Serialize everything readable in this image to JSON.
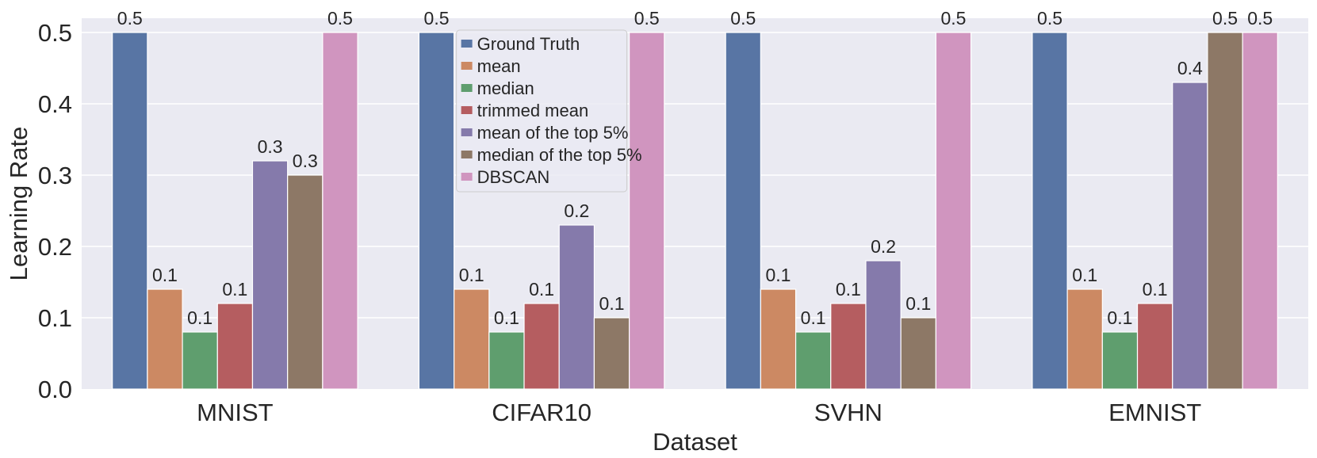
{
  "chart_data": {
    "type": "bar",
    "xlabel": "Dataset",
    "ylabel": "Learning Rate",
    "ylim": [
      0,
      0.52
    ],
    "yticks": [
      "0.0",
      "0.1",
      "0.2",
      "0.3",
      "0.4",
      "0.5"
    ],
    "grid": true,
    "legend_placement": "lower-left",
    "categories": [
      "MNIST",
      "CIFAR10",
      "SVHN",
      "EMNIST"
    ],
    "series": [
      {
        "name": "Ground Truth",
        "color": "#5875a4",
        "values": [
          0.5,
          0.5,
          0.5,
          0.5
        ],
        "labels": [
          "0.5",
          "0.5",
          "0.5",
          "0.5"
        ]
      },
      {
        "name": "mean",
        "color": "#cc8963",
        "values": [
          0.14,
          0.14,
          0.14,
          0.14
        ],
        "labels": [
          "0.1",
          "0.1",
          "0.1",
          "0.1"
        ]
      },
      {
        "name": "median",
        "color": "#5f9e6e",
        "values": [
          0.08,
          0.08,
          0.08,
          0.08
        ],
        "labels": [
          "0.1",
          "0.1",
          "0.1",
          "0.1"
        ]
      },
      {
        "name": "trimmed mean",
        "color": "#b55d60",
        "values": [
          0.12,
          0.12,
          0.12,
          0.12
        ],
        "labels": [
          "0.1",
          "0.1",
          "0.1",
          "0.1"
        ]
      },
      {
        "name": "mean of the top 5%",
        "color": "#857aab",
        "values": [
          0.32,
          0.23,
          0.18,
          0.43
        ],
        "labels": [
          "0.3",
          "0.2",
          "0.2",
          "0.4"
        ]
      },
      {
        "name": "median of the top 5%",
        "color": "#8d7866",
        "values": [
          0.3,
          0.1,
          0.1,
          0.5
        ],
        "labels": [
          "0.3",
          "0.1",
          "0.1",
          "0.5"
        ]
      },
      {
        "name": "DBSCAN",
        "color": "#d095bf",
        "values": [
          0.5,
          0.5,
          0.5,
          0.5
        ],
        "labels": [
          "0.5",
          "0.5",
          "0.5",
          "0.5"
        ]
      }
    ],
    "background_color": "#eaeaf2"
  }
}
